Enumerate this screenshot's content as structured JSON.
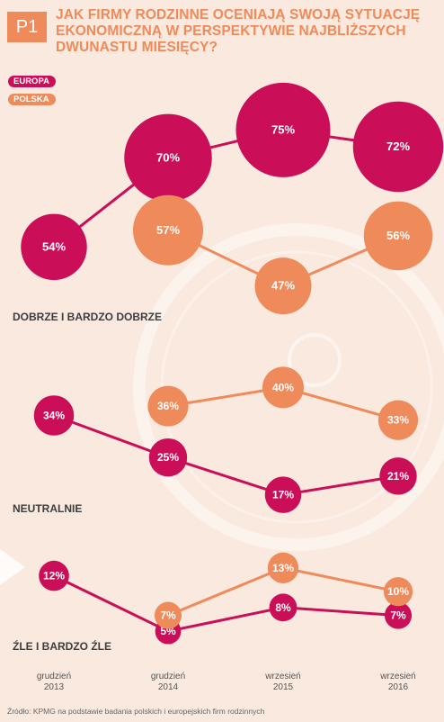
{
  "badge": "P1",
  "title_lines": [
    "JAK FIRMY RODZINNE OCENIAJĄ SWOJĄ SYTUACJĘ",
    "EKONOMICZNĄ W PERSPEKTYWIE NAJBLIŻSZYCH",
    "DWUNASTU MIESIĘCY?"
  ],
  "legend": [
    {
      "label": "EUROPA",
      "color": "#cb0e58"
    },
    {
      "label": "POLSKA",
      "color": "#ef8a5a"
    }
  ],
  "colors": {
    "europa": "#cb0e58",
    "polska": "#ef8a5a",
    "background": "#fae9df"
  },
  "source": "Źródło: KPMG na podstawie badania polskich i europejskich firm rodzinnych",
  "chart_data": {
    "type": "scatter",
    "categories": [
      {
        "line1": "grudzień",
        "line2": "2013"
      },
      {
        "line1": "grudzień",
        "line2": "2014"
      },
      {
        "line1": "wrzesień",
        "line2": "2015"
      },
      {
        "line1": "wrzesień",
        "line2": "2016"
      }
    ],
    "value_format": "%",
    "panels": [
      {
        "label": "DOBRZE I BARDZO DOBRZE",
        "series": [
          {
            "name": "EUROPA",
            "values": [
              54,
              70,
              75,
              72
            ]
          },
          {
            "name": "POLSKA",
            "values": [
              null,
              57,
              47,
              56
            ]
          }
        ]
      },
      {
        "label": "NEUTRALNIE",
        "series": [
          {
            "name": "EUROPA",
            "values": [
              34,
              25,
              17,
              21
            ]
          },
          {
            "name": "POLSKA",
            "values": [
              null,
              36,
              40,
              33
            ]
          }
        ]
      },
      {
        "label": "ŹLE I BARDZO ŹLE",
        "series": [
          {
            "name": "EUROPA",
            "values": [
              12,
              5,
              8,
              7
            ]
          },
          {
            "name": "POLSKA",
            "values": [
              null,
              7,
              13,
              10
            ]
          }
        ]
      }
    ]
  }
}
